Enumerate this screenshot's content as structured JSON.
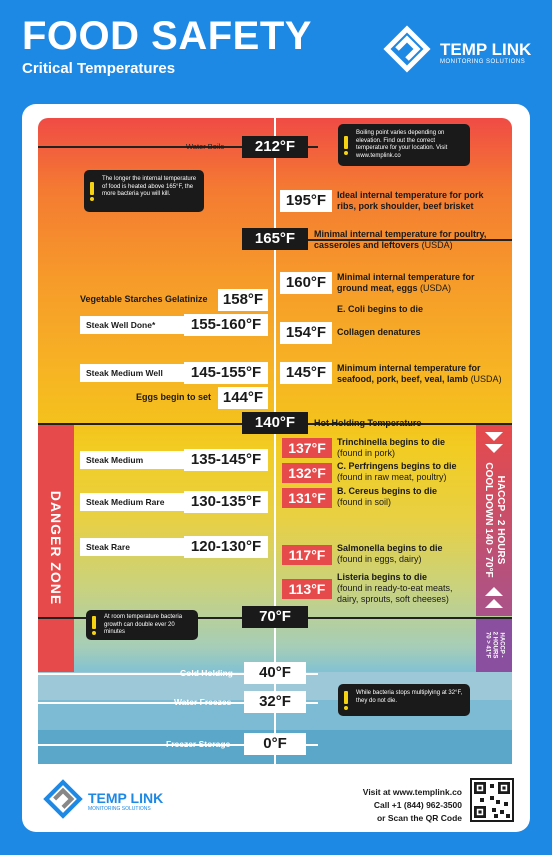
{
  "header": {
    "title": "FOOD SAFETY",
    "subtitle": "Critical Temperatures",
    "logo_name": "TEMP LINK",
    "logo_tagline": "MONITORING SOLUTIONS"
  },
  "markers": {
    "t212": {
      "label": "Water Boils",
      "temp": "212°F"
    },
    "t195": {
      "temp": "195°F",
      "desc": "Ideal internal temperature for pork ribs, pork shoulder, beef brisket"
    },
    "t165": {
      "temp": "165°F",
      "desc": "Minimal internal temperature for poultry, casseroles and leftovers",
      "src": "(USDA)"
    },
    "t160": {
      "temp": "160°F",
      "desc": "Minimal internal temperature for ground meat, eggs",
      "src": "(USDA)"
    },
    "ecoli": "E. Coli begins to die",
    "t158": {
      "label": "Vegetable Starches Gelatinize",
      "temp": "158°F"
    },
    "well": {
      "label": "Steak Well Done*",
      "temp": "155-160°F"
    },
    "t154": {
      "temp": "154°F",
      "desc": "Collagen denatures"
    },
    "mwell": {
      "label": "Steak Medium Well",
      "temp": "145-155°F"
    },
    "t145": {
      "temp": "145°F",
      "desc": "Minimum internal temperature for seafood, pork, beef, veal, lamb",
      "src": "(USDA)"
    },
    "t144": {
      "label": "Eggs begin to set",
      "temp": "144°F"
    },
    "t140": {
      "temp": "140°F",
      "desc": "Hot Holding Temperature"
    },
    "med": {
      "label": "Steak Medium",
      "temp": "135-145°F"
    },
    "t137": {
      "temp": "137°F",
      "desc": "Trinchinella begins to die",
      "sub": "(found in pork)"
    },
    "t132": {
      "temp": "132°F",
      "desc": "C. Perfringens begins to die",
      "sub": "(found in raw meat, poultry)"
    },
    "mrare": {
      "label": "Steak Medium Rare",
      "temp": "130-135°F"
    },
    "t131": {
      "temp": "131°F",
      "desc": "B. Cereus begins to die",
      "sub": "(found in soil)"
    },
    "rare": {
      "label": "Steak Rare",
      "temp": "120-130°F"
    },
    "t117": {
      "temp": "117°F",
      "desc": "Salmonella begins to die",
      "sub": "(found in eggs, dairy)"
    },
    "t113": {
      "temp": "113°F",
      "desc": "Listeria begins to die",
      "sub": "(found in ready-to-eat meats, dairy, sprouts, soft cheeses)"
    },
    "t70": {
      "temp": "70°F"
    },
    "t40": {
      "label": "Cold Holding",
      "temp": "40°F"
    },
    "t32": {
      "label": "Water Freezes",
      "temp": "32°F"
    },
    "t0": {
      "label": "Freezer Storage",
      "temp": "0°F"
    }
  },
  "notes": {
    "boiling": "Boiling point varies depending on elevation. Find out the correct temperature for your location. Visit www.templink.co",
    "longer": "The longer the internal temperature of food is heated above 165°F, the more bacteria you will kill.",
    "room": "At room temperature bacteria growth can double ever 20 minutes",
    "freeze": "While bacteria stops multiplying at 32°F, they do not die."
  },
  "danger_zone": "DANGER ZONE",
  "haccp1": {
    "line1": "HACCP - 2 HOURS",
    "line2": "COOL DOWN 140 > 70°F"
  },
  "haccp2": {
    "line1": "HACCP -",
    "line2": "2 HOURS",
    "line3": "70 > 41°F"
  },
  "footer": {
    "line1": "Visit at www.templink.co",
    "line2": "Call +1 (844) 962-3500",
    "line3": "or Scan the QR Code"
  },
  "colors": {
    "danger": "#e74a4a",
    "dark": "#1a1a1a",
    "brand_blue": "#1e88e5",
    "haccp_purple": "#8a4f9e"
  }
}
